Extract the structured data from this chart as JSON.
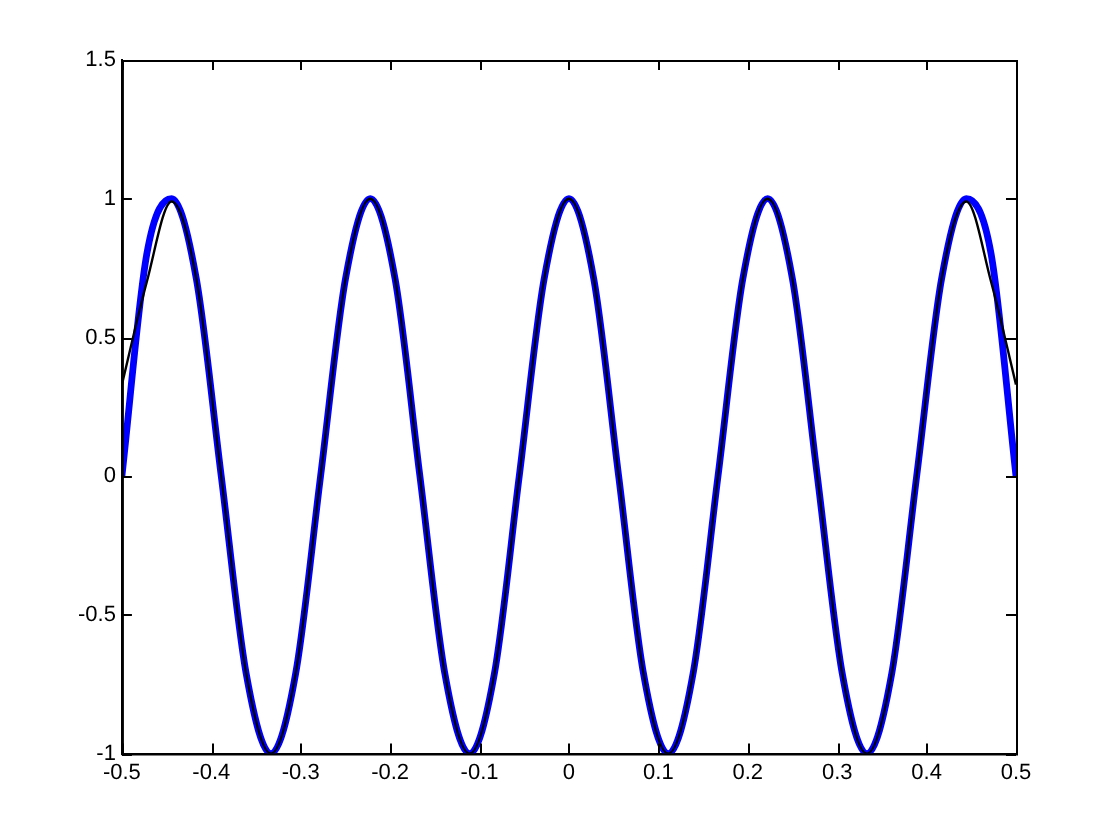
{
  "chart_data": {
    "type": "line",
    "x": [
      -0.5,
      -0.4722,
      -0.4444,
      -0.4167,
      -0.3889,
      -0.3611,
      -0.3333,
      -0.3056,
      -0.2778,
      -0.25,
      -0.2222,
      -0.1944,
      -0.1667,
      -0.1389,
      -0.1111,
      -0.0833,
      -0.0556,
      -0.0278,
      0,
      0.0278,
      0.0556,
      0.0833,
      0.1111,
      0.1389,
      0.1667,
      0.1944,
      0.2222,
      0.25,
      0.2778,
      0.3056,
      0.3333,
      0.3611,
      0.3889,
      0.4167,
      0.4444,
      0.4722,
      0.5
    ],
    "series": [
      {
        "color": "#0000ff",
        "values": [
          0,
          0.8,
          1,
          0.71,
          0,
          -0.71,
          -1,
          -0.71,
          0,
          0.71,
          1,
          0.71,
          0,
          -0.71,
          -1,
          -0.71,
          0,
          0.71,
          1,
          0.71,
          0,
          -0.71,
          -1,
          -0.71,
          0,
          0.71,
          1,
          0.71,
          0,
          -0.71,
          -1,
          -0.71,
          0,
          0.71,
          1,
          0.8,
          0
        ]
      },
      {
        "color": "#000000",
        "values": [
          0.33,
          0.7,
          0.99,
          0.71,
          0,
          -0.71,
          -1,
          -0.71,
          0,
          0.71,
          1,
          0.71,
          0,
          -0.71,
          -1,
          -0.71,
          0,
          0.71,
          1,
          0.71,
          0,
          -0.71,
          -1,
          -0.71,
          0,
          0.71,
          1,
          0.71,
          0,
          -0.71,
          -1,
          -0.71,
          0,
          0.71,
          0.99,
          0.7,
          0.33
        ]
      }
    ],
    "xlim": [
      -0.5,
      0.5
    ],
    "xticks": [
      -0.5,
      -0.4,
      -0.3,
      -0.2,
      -0.1,
      0,
      0.1,
      0.2,
      0.3,
      0.4,
      0.5
    ],
    "ylim": [
      -1,
      1.5
    ],
    "yticks": [
      -1,
      -0.5,
      0,
      0.5,
      1,
      1.5
    ],
    "grid": false,
    "legend": false,
    "marker": "none",
    "line_style": "solid"
  }
}
